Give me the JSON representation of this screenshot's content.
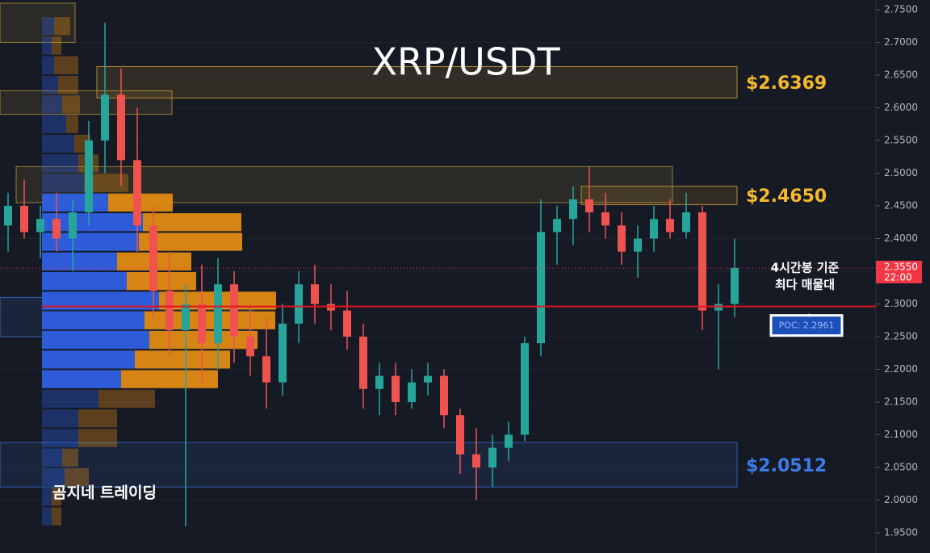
{
  "chart_data": {
    "type": "candlestick",
    "title": "XRP/USDT",
    "watermark": "곰지네 트레이딩",
    "annotation": [
      "4시간봉 기준",
      "최다 매물대"
    ],
    "ylim": [
      1.95,
      2.75
    ],
    "yticks": [
      {
        "value": 1.95,
        "label": "1.9500"
      },
      {
        "value": 2.0,
        "label": "2.0000"
      },
      {
        "value": 2.05,
        "label": "2.0500"
      },
      {
        "value": 2.1,
        "label": "2.1000"
      },
      {
        "value": 2.15,
        "label": "2.1500"
      },
      {
        "value": 2.2,
        "label": "2.2000"
      },
      {
        "value": 2.25,
        "label": "2.2500"
      },
      {
        "value": 2.3,
        "label": "2.3000"
      },
      {
        "value": 2.35,
        "label": "2.3500"
      },
      {
        "value": 2.4,
        "label": "2.4000"
      },
      {
        "value": 2.45,
        "label": "2.4500"
      },
      {
        "value": 2.5,
        "label": "2.5000"
      },
      {
        "value": 2.55,
        "label": "2.5500"
      },
      {
        "value": 2.6,
        "label": "2.6000"
      },
      {
        "value": 2.65,
        "label": "2.6500"
      },
      {
        "value": 2.7,
        "label": "2.7000"
      },
      {
        "value": 2.75,
        "label": "2.7500"
      }
    ],
    "up_color": "#26a69a",
    "down_color": "#ef5350",
    "open": [
      2.42,
      2.45,
      2.41,
      2.43,
      2.4,
      2.44,
      2.55,
      2.62,
      2.52,
      2.42,
      2.32,
      2.26,
      2.3,
      2.24,
      2.33,
      2.25,
      2.22,
      2.18,
      2.27,
      2.33,
      2.3,
      2.29,
      2.25,
      2.17,
      2.19,
      2.15,
      2.18,
      2.19,
      2.13,
      2.07,
      2.05,
      2.08,
      2.1,
      2.24,
      2.41,
      2.43,
      2.46,
      2.44,
      2.42,
      2.38,
      2.4,
      2.43,
      2.41,
      2.44,
      2.29,
      2.3
    ],
    "high": [
      2.47,
      2.49,
      2.45,
      2.47,
      2.46,
      2.58,
      2.73,
      2.66,
      2.6,
      2.45,
      2.38,
      2.33,
      2.36,
      2.37,
      2.35,
      2.3,
      2.28,
      2.3,
      2.35,
      2.36,
      2.33,
      2.32,
      2.27,
      2.21,
      2.21,
      2.2,
      2.21,
      2.2,
      2.14,
      2.11,
      2.1,
      2.12,
      2.25,
      2.46,
      2.45,
      2.48,
      2.51,
      2.47,
      2.44,
      2.42,
      2.45,
      2.46,
      2.47,
      2.45,
      2.33,
      2.4
    ],
    "low": [
      2.38,
      2.4,
      2.37,
      2.38,
      2.35,
      2.42,
      2.5,
      2.48,
      2.38,
      2.28,
      2.22,
      1.96,
      2.18,
      2.2,
      2.21,
      2.19,
      2.14,
      2.16,
      2.24,
      2.27,
      2.26,
      2.23,
      2.14,
      2.13,
      2.13,
      2.14,
      2.16,
      2.11,
      2.04,
      2.0,
      2.02,
      2.06,
      2.09,
      2.22,
      2.36,
      2.39,
      2.41,
      2.4,
      2.36,
      2.34,
      2.38,
      2.4,
      2.4,
      2.26,
      2.2,
      2.28
    ],
    "close": [
      2.45,
      2.41,
      2.43,
      2.4,
      2.44,
      2.55,
      2.62,
      2.52,
      2.42,
      2.32,
      2.26,
      2.3,
      2.24,
      2.33,
      2.25,
      2.22,
      2.18,
      2.27,
      2.33,
      2.3,
      2.29,
      2.25,
      2.17,
      2.19,
      2.15,
      2.18,
      2.19,
      2.13,
      2.07,
      2.05,
      2.08,
      2.1,
      2.24,
      2.41,
      2.43,
      2.46,
      2.44,
      2.42,
      2.38,
      2.4,
      2.43,
      2.41,
      2.44,
      2.29,
      2.3,
      2.355
    ],
    "last_price": {
      "value": 2.355,
      "label": "2.3550"
    },
    "countdown": "22:00",
    "last_price_color": "#f23645",
    "poc": {
      "value": 2.2961,
      "label": "POC: 2.2961"
    },
    "poc_color": "#e0141e",
    "volume_profile": {
      "bins": [
        1.96,
        1.99,
        2.02,
        2.05,
        2.08,
        2.11,
        2.14,
        2.17,
        2.2,
        2.23,
        2.26,
        2.29,
        2.32,
        2.35,
        2.38,
        2.41,
        2.44,
        2.47,
        2.5,
        2.53,
        2.56,
        2.59,
        2.62,
        2.65,
        2.68,
        2.71,
        2.74
      ],
      "buy": [
        12,
        12,
        28,
        25,
        45,
        45,
        70,
        98,
        115,
        133,
        127,
        145,
        105,
        93,
        120,
        125,
        82,
        52,
        45,
        40,
        30,
        25,
        20,
        15,
        12,
        15
      ],
      "sell": [
        12,
        12,
        30,
        20,
        48,
        48,
        70,
        120,
        118,
        134,
        162,
        145,
        86,
        92,
        128,
        122,
        80,
        55,
        25,
        20,
        15,
        22,
        25,
        30,
        12,
        20
      ],
      "buy_color": "#2f5fe0",
      "sell_color": "#e08a12",
      "value_area": [
        2.17,
        2.47
      ]
    },
    "zones": [
      {
        "low": 2.615,
        "high": 2.663,
        "start": 6,
        "end": 45,
        "label": "$2.6369",
        "color": "#f5b82e"
      },
      {
        "low": 2.452,
        "high": 2.48,
        "start": 36,
        "end": 45,
        "label": "$2.4650",
        "color": "#f5b82e"
      },
      {
        "low": 2.02,
        "high": 2.088,
        "start": 0,
        "end": 45,
        "label": "$2.0512",
        "color": "#3d7be8"
      },
      {
        "low": 2.7,
        "high": 2.76,
        "start": 0,
        "end": 4,
        "color": "#c9a63a"
      },
      {
        "low": 2.59,
        "high": 2.626,
        "start": 0,
        "end": 10,
        "color": "#c9a63a"
      },
      {
        "low": 2.455,
        "high": 2.51,
        "start": 1,
        "end": 41,
        "color": "#c9a63a"
      },
      {
        "low": 2.25,
        "high": 2.31,
        "start": 0,
        "end": 15,
        "color": "#3d7be8"
      }
    ]
  }
}
